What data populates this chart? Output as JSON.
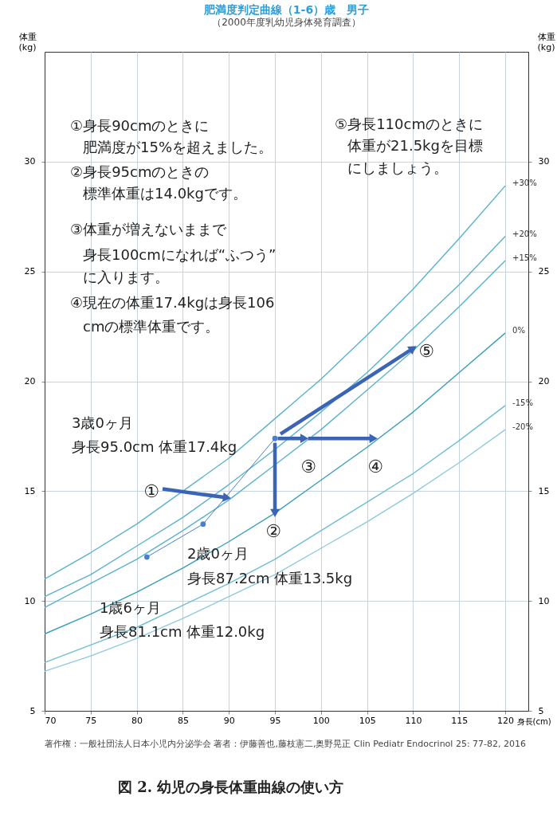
{
  "chart_data": {
    "type": "line",
    "title": "肥満度判定曲線（1-6）歳　男子",
    "subtitle": "（2000年度乳幼児身体発育調査）",
    "xlabel": "身長(cm)",
    "ylabel": "体重\n(kg)",
    "y2label": "体重\n(kg)",
    "x": [
      70,
      75,
      80,
      85,
      90,
      95,
      100,
      105,
      110,
      115,
      120
    ],
    "series": [
      {
        "name": "+30%",
        "color": "#5ab3cb",
        "marker": "none",
        "values": [
          11.0,
          12.2,
          13.5,
          15.0,
          16.5,
          18.3,
          20.1,
          22.1,
          24.2,
          26.5,
          28.9
        ]
      },
      {
        "name": "+20%",
        "color": "#5ab3cb",
        "marker": "none",
        "values": [
          10.2,
          11.2,
          12.5,
          13.8,
          15.3,
          16.9,
          18.6,
          20.4,
          22.4,
          24.4,
          26.6
        ]
      },
      {
        "name": "+15%",
        "color": "#5ab3cb",
        "marker": "none",
        "values": [
          9.7,
          10.8,
          11.9,
          13.2,
          14.6,
          16.2,
          17.8,
          19.6,
          21.4,
          23.4,
          25.5
        ]
      },
      {
        "name": "0%",
        "color": "#3a9fb9",
        "marker": "none",
        "values": [
          8.5,
          9.4,
          10.4,
          11.5,
          12.7,
          14.0,
          15.5,
          17.0,
          18.6,
          20.4,
          22.2
        ]
      },
      {
        "name": "-15%",
        "color": "#6fbdd2",
        "marker": "none",
        "values": [
          7.2,
          8.0,
          8.8,
          9.8,
          10.8,
          11.9,
          13.2,
          14.5,
          15.8,
          17.3,
          18.9
        ]
      },
      {
        "name": "-20%",
        "color": "#8fcbdb",
        "marker": "none",
        "values": [
          6.8,
          7.5,
          8.3,
          9.2,
          10.2,
          11.2,
          12.4,
          13.6,
          14.9,
          16.3,
          17.8
        ]
      },
      {
        "color": "#4a7fd0",
        "marker": "circle",
        "x": [
          81.1,
          87.2,
          95.0
        ],
        "values": [
          12.0,
          13.5,
          17.4
        ]
      },
      {
        "color": "#3b64b4",
        "marker": "triangle",
        "x": [
          82.8,
          89.8
        ],
        "values": [
          15.1,
          14.7
        ]
      },
      {
        "color": "#3b64b4",
        "marker": "triangle",
        "x": [
          95.0,
          95.0
        ],
        "values": [
          17.2,
          14.0
        ]
      },
      {
        "color": "#3b64b4",
        "marker": "triangle",
        "x": [
          95.3,
          98.2
        ],
        "values": [
          17.4,
          17.4
        ]
      },
      {
        "color": "#3b64b4",
        "marker": "triangle",
        "x": [
          98.6,
          105.7
        ],
        "values": [
          17.4,
          17.4
        ]
      },
      {
        "color": "#3b64b4",
        "marker": "triangle",
        "x": [
          95.6,
          110.0
        ],
        "values": [
          17.6,
          21.5
        ]
      }
    ],
    "xlim": [
      70,
      122.5
    ],
    "xticks": [
      70,
      75,
      80,
      85,
      90,
      95,
      100,
      105,
      110,
      115,
      120
    ],
    "ylim": [
      5,
      35
    ],
    "yticks": [
      5,
      10,
      15,
      20,
      25,
      30
    ],
    "y2lim": [
      5,
      35
    ],
    "y2ticks": [
      5,
      10,
      15,
      20,
      25,
      30
    ],
    "grid": true,
    "annotations": [
      "①身長90cmのときに",
      "肥満度が15%を超えました。",
      "②身長95cmのときの",
      "標準体重は14.0kgです。",
      "③体重が増えないままで",
      "身長100cmになれば“ふつう”",
      "に入ります。",
      "④現在の体重17.4kgは身長106",
      "cmの標準体重です。",
      "⑤身長110cmのときに",
      "体重が21.5kgを目標",
      "にしましょう。",
      "3歳0ヶ月",
      "身長95.0cm 体重17.4kg",
      "2歳0ヶ月",
      "身長87.2cm 体重13.5kg",
      "1歳6ヶ月",
      "身長81.1cm 体重12.0kg",
      "①",
      "②",
      "③",
      "④",
      "⑤",
      "著作権：一般社団法人日本小児内分泌学会 著者：伊藤善也,藤枝憲二,奥野晃正 Clin Pediatr Endocrinol 25: 77-82, 2016",
      "図 2. 幼児の身長体重曲線の使い方"
    ]
  }
}
